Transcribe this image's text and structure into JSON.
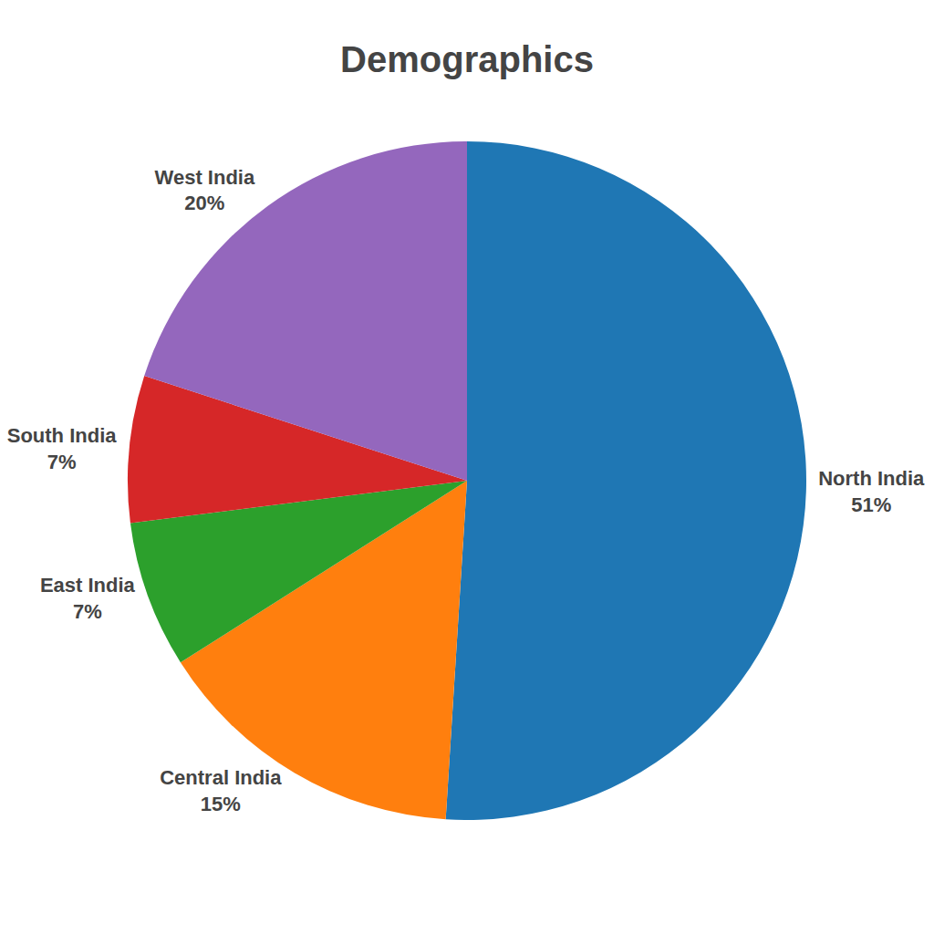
{
  "chart_data": {
    "type": "pie",
    "title": "Demographics",
    "categories": [
      "North India",
      "Central India",
      "East India",
      "South India",
      "West India"
    ],
    "values": [
      51,
      15,
      7,
      7,
      20
    ],
    "value_labels": [
      "51%",
      "15%",
      "7%",
      "7%",
      "20%"
    ],
    "data_labels": true
  }
}
